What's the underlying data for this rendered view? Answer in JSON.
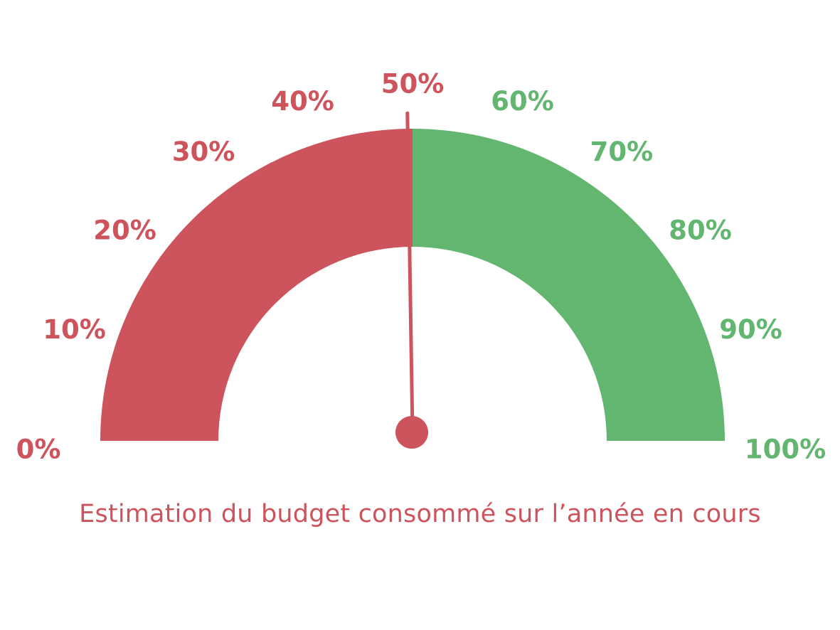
{
  "chart_data": {
    "type": "gauge",
    "title": "",
    "caption": "Estimation du budget consommé sur l’année en cours",
    "min": 0,
    "max": 100,
    "value": 49.5,
    "ticks": [
      {
        "value": 0,
        "label": "0%"
      },
      {
        "value": 10,
        "label": "10%"
      },
      {
        "value": 20,
        "label": "20%"
      },
      {
        "value": 30,
        "label": "30%"
      },
      {
        "value": 40,
        "label": "40%"
      },
      {
        "value": 50,
        "label": "50%"
      },
      {
        "value": 60,
        "label": "60%"
      },
      {
        "value": 70,
        "label": "70%"
      },
      {
        "value": 80,
        "label": "80%"
      },
      {
        "value": 90,
        "label": "90%"
      },
      {
        "value": 100,
        "label": "100%"
      }
    ],
    "bands": [
      {
        "from": 0,
        "to": 50,
        "color": "#cd545c"
      },
      {
        "from": 50,
        "to": 100,
        "color": "#62b670"
      }
    ]
  },
  "colors": {
    "red": "#cd545c",
    "green": "#62b670",
    "needle": "#cd545c",
    "caption": "#cd545c"
  }
}
